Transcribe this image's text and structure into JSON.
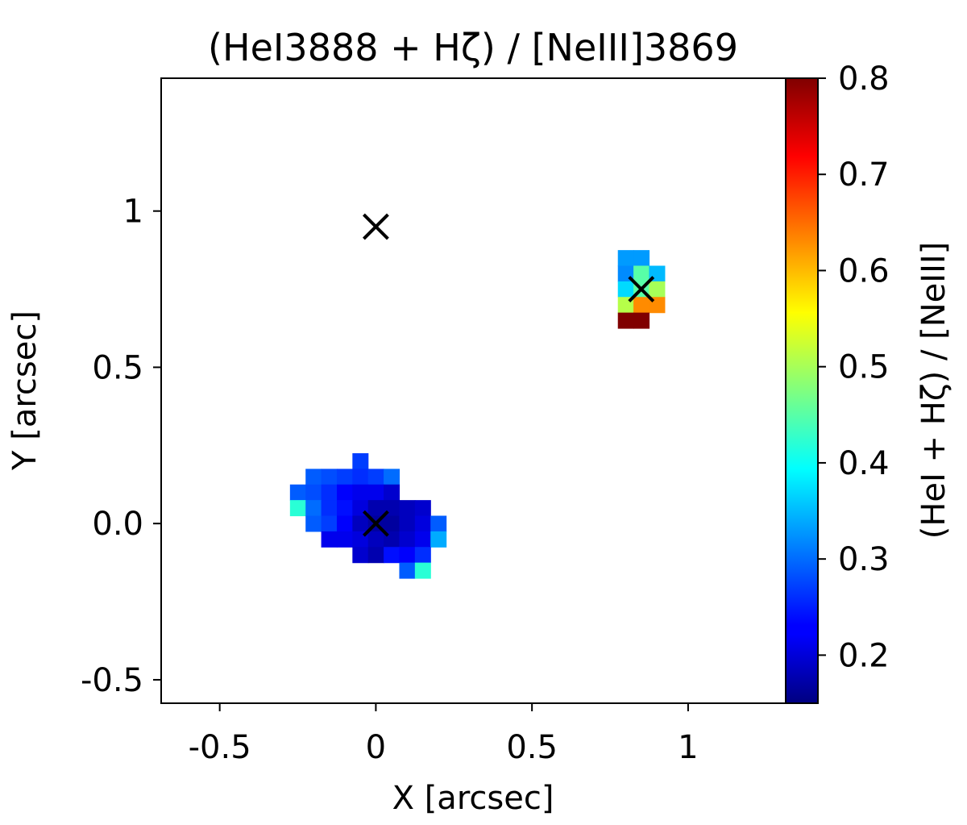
{
  "chart_data": {
    "type": "heatmap",
    "title": "(HeI3888 + Hζ) / [NeIII]3869",
    "xlabel": "X [arcsec]",
    "ylabel": "Y [arcsec]",
    "xlim": [
      -0.6875,
      1.3125
    ],
    "ylim": [
      -0.575,
      1.425
    ],
    "xticks": [
      -0.5,
      0,
      0.5,
      1
    ],
    "xtick_labels": [
      "-0.5",
      "0",
      "0.5",
      "1"
    ],
    "yticks": [
      -0.5,
      0,
      0.5,
      1
    ],
    "ytick_labels": [
      "-0.5",
      "0.0",
      "0.5",
      "1"
    ],
    "grid": false,
    "pixel_size": 0.05,
    "colormap": "jet",
    "colorbar": {
      "label": "(HeI + Hζ) / [NeIII]",
      "range": [
        0.15,
        0.8
      ],
      "ticks": [
        0.2,
        0.3,
        0.4,
        0.5,
        0.6,
        0.7,
        0.8
      ],
      "tick_labels": [
        "0.2",
        "0.3",
        "0.4",
        "0.5",
        "0.6",
        "0.7",
        "0.8"
      ]
    },
    "pixels": [
      {
        "x": -0.05,
        "y": 0.2,
        "value": 0.27
      },
      {
        "x": -0.2,
        "y": 0.15,
        "value": 0.29
      },
      {
        "x": -0.15,
        "y": 0.15,
        "value": 0.28
      },
      {
        "x": -0.1,
        "y": 0.15,
        "value": 0.27
      },
      {
        "x": -0.05,
        "y": 0.15,
        "value": 0.26
      },
      {
        "x": 0.0,
        "y": 0.15,
        "value": 0.27
      },
      {
        "x": 0.05,
        "y": 0.15,
        "value": 0.3
      },
      {
        "x": -0.25,
        "y": 0.1,
        "value": 0.29
      },
      {
        "x": -0.2,
        "y": 0.1,
        "value": 0.28
      },
      {
        "x": -0.15,
        "y": 0.1,
        "value": 0.26
      },
      {
        "x": -0.1,
        "y": 0.1,
        "value": 0.23
      },
      {
        "x": -0.05,
        "y": 0.1,
        "value": 0.22
      },
      {
        "x": 0.0,
        "y": 0.1,
        "value": 0.22
      },
      {
        "x": 0.05,
        "y": 0.1,
        "value": 0.2
      },
      {
        "x": -0.25,
        "y": 0.05,
        "value": 0.42
      },
      {
        "x": -0.2,
        "y": 0.05,
        "value": 0.3
      },
      {
        "x": -0.15,
        "y": 0.05,
        "value": 0.26
      },
      {
        "x": -0.1,
        "y": 0.05,
        "value": 0.24
      },
      {
        "x": -0.05,
        "y": 0.05,
        "value": 0.21
      },
      {
        "x": 0.0,
        "y": 0.05,
        "value": 0.18
      },
      {
        "x": 0.05,
        "y": 0.05,
        "value": 0.18
      },
      {
        "x": 0.1,
        "y": 0.05,
        "value": 0.19
      },
      {
        "x": 0.15,
        "y": 0.05,
        "value": 0.2
      },
      {
        "x": -0.2,
        "y": 0.0,
        "value": 0.29
      },
      {
        "x": -0.15,
        "y": 0.0,
        "value": 0.27
      },
      {
        "x": -0.1,
        "y": 0.0,
        "value": 0.23
      },
      {
        "x": -0.05,
        "y": 0.0,
        "value": 0.19
      },
      {
        "x": 0.0,
        "y": 0.0,
        "value": 0.17
      },
      {
        "x": 0.05,
        "y": 0.0,
        "value": 0.17
      },
      {
        "x": 0.1,
        "y": 0.0,
        "value": 0.19
      },
      {
        "x": 0.15,
        "y": 0.0,
        "value": 0.21
      },
      {
        "x": 0.2,
        "y": 0.0,
        "value": 0.29
      },
      {
        "x": -0.15,
        "y": -0.05,
        "value": 0.22
      },
      {
        "x": -0.1,
        "y": -0.05,
        "value": 0.22
      },
      {
        "x": -0.05,
        "y": -0.05,
        "value": 0.21
      },
      {
        "x": 0.0,
        "y": -0.05,
        "value": 0.19
      },
      {
        "x": 0.05,
        "y": -0.05,
        "value": 0.18
      },
      {
        "x": 0.1,
        "y": -0.05,
        "value": 0.2
      },
      {
        "x": 0.15,
        "y": -0.05,
        "value": 0.22
      },
      {
        "x": 0.2,
        "y": -0.05,
        "value": 0.34
      },
      {
        "x": -0.05,
        "y": -0.1,
        "value": 0.2
      },
      {
        "x": 0.0,
        "y": -0.1,
        "value": 0.18
      },
      {
        "x": 0.05,
        "y": -0.1,
        "value": 0.24
      },
      {
        "x": 0.1,
        "y": -0.1,
        "value": 0.23
      },
      {
        "x": 0.15,
        "y": -0.1,
        "value": 0.26
      },
      {
        "x": 0.1,
        "y": -0.15,
        "value": 0.29
      },
      {
        "x": 0.15,
        "y": -0.15,
        "value": 0.42
      },
      {
        "x": 0.8,
        "y": 0.85,
        "value": 0.33
      },
      {
        "x": 0.85,
        "y": 0.85,
        "value": 0.33
      },
      {
        "x": 0.8,
        "y": 0.8,
        "value": 0.32
      },
      {
        "x": 0.85,
        "y": 0.8,
        "value": 0.45
      },
      {
        "x": 0.9,
        "y": 0.8,
        "value": 0.35
      },
      {
        "x": 0.8,
        "y": 0.75,
        "value": 0.37
      },
      {
        "x": 0.85,
        "y": 0.75,
        "value": 0.45
      },
      {
        "x": 0.9,
        "y": 0.75,
        "value": 0.5
      },
      {
        "x": 0.8,
        "y": 0.7,
        "value": 0.51
      },
      {
        "x": 0.85,
        "y": 0.7,
        "value": 0.63
      },
      {
        "x": 0.9,
        "y": 0.7,
        "value": 0.63
      },
      {
        "x": 0.8,
        "y": 0.65,
        "value": 0.8
      },
      {
        "x": 0.85,
        "y": 0.65,
        "value": 0.8
      }
    ],
    "markers": [
      {
        "symbol": "x",
        "x": 0.0,
        "y": 0.95
      },
      {
        "symbol": "x",
        "x": 0.0,
        "y": 0.0
      },
      {
        "symbol": "x",
        "x": 0.85,
        "y": 0.75
      }
    ]
  }
}
